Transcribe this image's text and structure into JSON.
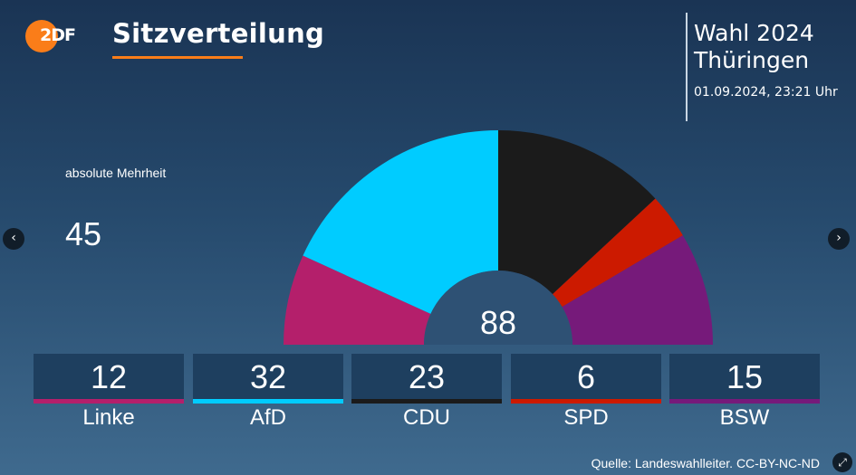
{
  "header": {
    "logo_text": "2DF",
    "title": "Sitzverteilung",
    "election_line1": "Wahl 2024",
    "election_line2": "Thüringen",
    "timestamp": "01.09.2024, 23:21 Uhr"
  },
  "majority": {
    "label": "absolute Mehrheit",
    "value": "45"
  },
  "source": "Quelle: Landeswahlleiter. CC-BY-NC-ND",
  "chart_data": {
    "type": "hemicycle",
    "title": "Sitzverteilung",
    "total": 88,
    "total_label": "88",
    "parties": [
      {
        "name": "Linke",
        "seats": 12,
        "label": "12",
        "color": "#b41f6b"
      },
      {
        "name": "AfD",
        "seats": 32,
        "label": "32",
        "color": "#00ccff"
      },
      {
        "name": "CDU",
        "seats": 23,
        "label": "23",
        "color": "#1b1b1b"
      },
      {
        "name": "SPD",
        "seats": 6,
        "label": "6",
        "color": "#cc1a00"
      },
      {
        "name": "BSW",
        "seats": 15,
        "label": "15",
        "color": "#761a7a"
      }
    ]
  },
  "icons": {
    "prev": "chevron-left-icon",
    "prev_glyph": "‹",
    "next": "chevron-right-icon",
    "next_glyph": "›",
    "expand": "expand-icon",
    "expand_glyph": "⤢"
  }
}
